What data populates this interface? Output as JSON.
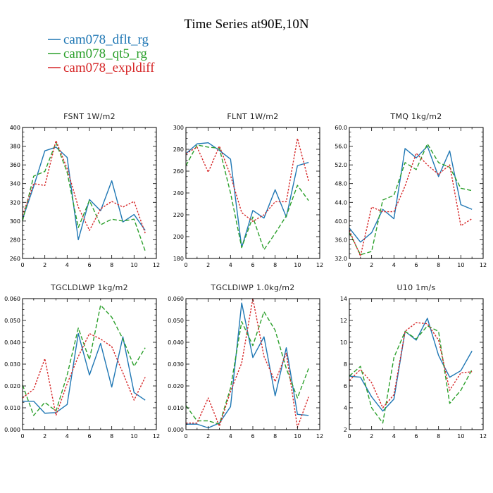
{
  "figure": {
    "title": "Time Series at90E,10N"
  },
  "chart_data": [
    {
      "type": "line",
      "title": "FSNT   1W/m2",
      "x": [
        0,
        1,
        2,
        3,
        4,
        5,
        6,
        7,
        8,
        9,
        10,
        11
      ],
      "xlim": [
        0,
        12
      ],
      "xticks": [
        0,
        2,
        4,
        6,
        8,
        10,
        12
      ],
      "ylim": [
        260,
        400
      ],
      "yticks": [
        260,
        280,
        300,
        320,
        340,
        360,
        380,
        400
      ],
      "ytick_labels": [
        "260",
        "280",
        "300",
        "320",
        "340",
        "360",
        "380",
        "400"
      ],
      "series": [
        {
          "name": "cam078_dflt_rg",
          "values": [
            302,
            337,
            375,
            379,
            368,
            280,
            323,
            311,
            343,
            299,
            307,
            290
          ]
        },
        {
          "name": "cam078_qt5_rg",
          "values": [
            300,
            348,
            353,
            384,
            352,
            293,
            322,
            296,
            302,
            300,
            302,
            268
          ]
        },
        {
          "name": "cam078_expldiff",
          "values": [
            306,
            340,
            338,
            386,
            356,
            315,
            290,
            313,
            321,
            315,
            321,
            287
          ]
        }
      ]
    },
    {
      "type": "line",
      "title": "FLNT   1W/m2",
      "x": [
        0,
        1,
        2,
        3,
        4,
        5,
        6,
        7,
        8,
        9,
        10,
        11
      ],
      "xlim": [
        0,
        12
      ],
      "xticks": [
        0,
        2,
        4,
        6,
        8,
        10,
        12
      ],
      "ylim": [
        180,
        300
      ],
      "yticks": [
        180,
        200,
        220,
        240,
        260,
        280,
        300
      ],
      "ytick_labels": [
        "180",
        "200",
        "220",
        "240",
        "260",
        "280",
        "300"
      ],
      "series": [
        {
          "name": "cam078_dflt_rg",
          "values": [
            276,
            285,
            286,
            279,
            271,
            190,
            224,
            217,
            243,
            218,
            265,
            268
          ]
        },
        {
          "name": "cam078_qt5_rg",
          "values": [
            265,
            284,
            282,
            281,
            240,
            190,
            218,
            188,
            203,
            219,
            247,
            233
          ]
        },
        {
          "name": "cam078_expldiff",
          "values": [
            276,
            282,
            259,
            283,
            256,
            222,
            214,
            220,
            232,
            232,
            290,
            251
          ]
        }
      ]
    },
    {
      "type": "line",
      "title": "TMQ   1kg/m2",
      "x": [
        0,
        1,
        2,
        3,
        4,
        5,
        6,
        7,
        8,
        9,
        10,
        11
      ],
      "xlim": [
        0,
        12
      ],
      "xticks": [
        0,
        2,
        4,
        6,
        8,
        10,
        12
      ],
      "ylim": [
        32,
        60
      ],
      "yticks": [
        32,
        36,
        40,
        44,
        48,
        52,
        56,
        60
      ],
      "ytick_labels": [
        "32.0",
        "36.0",
        "40.0",
        "44.0",
        "48.0",
        "52.0",
        "56.0",
        "60.0"
      ],
      "series": [
        {
          "name": "cam078_dflt_rg",
          "values": [
            38.5,
            35.5,
            37.5,
            42.5,
            40.5,
            55.5,
            53.5,
            56.0,
            49.5,
            55.0,
            43.5,
            42.5
          ]
        },
        {
          "name": "cam078_qt5_rg",
          "values": [
            37.5,
            32.8,
            33.5,
            44.5,
            45.5,
            52.5,
            51.0,
            56.5,
            52.5,
            51.5,
            47.0,
            46.5
          ]
        },
        {
          "name": "cam078_expldiff",
          "values": [
            38.0,
            32.5,
            43.0,
            42.0,
            42.0,
            47.5,
            54.5,
            52.0,
            50.0,
            52.0,
            39.0,
            40.5
          ]
        }
      ]
    },
    {
      "type": "line",
      "title": "TGCLDLWP   1kg/m2",
      "x": [
        0,
        1,
        2,
        3,
        4,
        5,
        6,
        7,
        8,
        9,
        10,
        11
      ],
      "xlim": [
        0,
        12
      ],
      "xticks": [
        0,
        2,
        4,
        6,
        8,
        10,
        12
      ],
      "ylim": [
        0.0,
        0.06
      ],
      "yticks": [
        0.0,
        0.01,
        0.02,
        0.03,
        0.04,
        0.05,
        0.06
      ],
      "ytick_labels": [
        "0.000",
        "0.010",
        "0.020",
        "0.030",
        "0.040",
        "0.050",
        "0.060"
      ],
      "series": [
        {
          "name": "cam078_dflt_rg",
          "values": [
            0.013,
            0.013,
            0.0075,
            0.0078,
            0.0115,
            0.044,
            0.025,
            0.0395,
            0.0195,
            0.0425,
            0.017,
            0.0135
          ]
        },
        {
          "name": "cam078_qt5_rg",
          "values": [
            0.0205,
            0.0065,
            0.0125,
            0.0085,
            0.025,
            0.0465,
            0.032,
            0.057,
            0.0515,
            0.0415,
            0.029,
            0.0375
          ]
        },
        {
          "name": "cam078_expldiff",
          "values": [
            0.0145,
            0.0185,
            0.0325,
            0.0065,
            0.021,
            0.0335,
            0.044,
            0.0415,
            0.038,
            0.026,
            0.0135,
            0.024
          ]
        }
      ]
    },
    {
      "type": "line",
      "title": "TGCLDIWP   1.0kg/m2",
      "x": [
        0,
        1,
        2,
        3,
        4,
        5,
        6,
        7,
        8,
        9,
        10,
        11
      ],
      "xlim": [
        0,
        12
      ],
      "xticks": [
        0,
        2,
        4,
        6,
        8,
        10,
        12
      ],
      "ylim": [
        0.0,
        0.06
      ],
      "yticks": [
        0.0,
        0.01,
        0.02,
        0.03,
        0.04,
        0.05,
        0.06
      ],
      "ytick_labels": [
        "0.000",
        "0.010",
        "0.020",
        "0.030",
        "0.040",
        "0.050",
        "0.060"
      ],
      "series": [
        {
          "name": "cam078_dflt_rg",
          "values": [
            0.0025,
            0.0025,
            0.0008,
            0.003,
            0.0105,
            0.058,
            0.033,
            0.0425,
            0.0155,
            0.0375,
            0.007,
            0.0065
          ]
        },
        {
          "name": "cam078_qt5_rg",
          "values": [
            0.011,
            0.004,
            0.004,
            0.0025,
            0.019,
            0.0495,
            0.0385,
            0.054,
            0.0455,
            0.028,
            0.0145,
            0.028
          ]
        },
        {
          "name": "cam078_expldiff",
          "values": [
            0.003,
            0.003,
            0.0145,
            0.0015,
            0.0175,
            0.0305,
            0.06,
            0.0335,
            0.022,
            0.035,
            0.001,
            0.015
          ]
        }
      ]
    },
    {
      "type": "line",
      "title": "U10   1m/s",
      "x": [
        0,
        1,
        2,
        3,
        4,
        5,
        6,
        7,
        8,
        9,
        10,
        11
      ],
      "xlim": [
        0,
        12
      ],
      "xticks": [
        0,
        2,
        4,
        6,
        8,
        10,
        12
      ],
      "ylim": [
        2,
        14
      ],
      "yticks": [
        2,
        4,
        6,
        8,
        10,
        12,
        14
      ],
      "ytick_labels": [
        "2",
        "4",
        "6",
        "8",
        "10",
        "12",
        "14"
      ],
      "series": [
        {
          "name": "cam078_dflt_rg",
          "values": [
            6.9,
            6.8,
            5.0,
            3.7,
            4.8,
            11.0,
            10.2,
            12.2,
            8.8,
            6.8,
            7.4,
            9.2
          ]
        },
        {
          "name": "cam078_qt5_rg",
          "values": [
            6.9,
            7.8,
            4.0,
            2.6,
            8.6,
            11.0,
            10.3,
            11.5,
            11.0,
            4.4,
            5.6,
            7.5
          ]
        },
        {
          "name": "cam078_expldiff",
          "values": [
            6.5,
            7.5,
            6.3,
            4.0,
            5.2,
            11.0,
            11.8,
            11.7,
            10.2,
            5.6,
            7.2,
            7.3
          ]
        }
      ]
    }
  ],
  "legend": {
    "entries": [
      {
        "label": "cam078_dflt_rg",
        "color": "#1f77b4",
        "dash": "solid"
      },
      {
        "label": "cam078_qt5_rg",
        "color": "#2ca02c",
        "dash": "dashed"
      },
      {
        "label": "cam078_expldiff",
        "color": "#d62728",
        "dash": "dotted"
      }
    ]
  }
}
